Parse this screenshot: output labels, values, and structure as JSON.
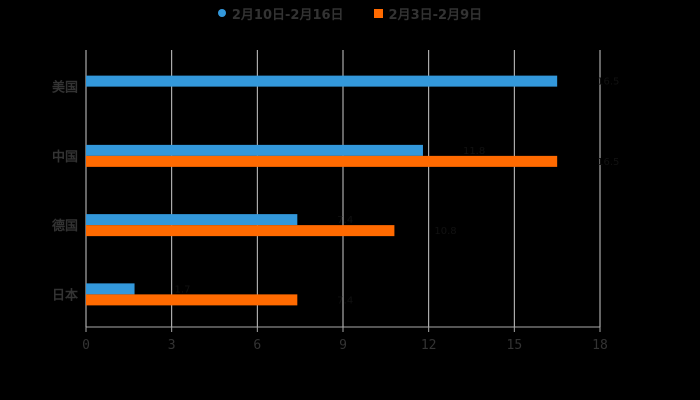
{
  "chart_data": {
    "type": "bar",
    "orientation": "horizontal",
    "title": "",
    "xlabel": "",
    "ylabel": "",
    "categories": [
      "美国",
      "中国",
      "德国",
      "日本"
    ],
    "series": [
      {
        "name": "2月10日-2月16日",
        "color": "#3398db",
        "values": [
          16.5,
          11.8,
          7.4,
          1.7
        ]
      },
      {
        "name": "2月3日-2月9日",
        "color": "#ff6a00",
        "values": [
          null,
          16.5,
          10.8,
          7.4
        ]
      }
    ],
    "xlim": [
      0,
      18
    ],
    "x_ticks": [
      "0",
      "3",
      "6",
      "9",
      "12",
      "15",
      "18"
    ],
    "grid": true,
    "legend_position": "top"
  },
  "legend": {
    "items": [
      {
        "label": "2月10日-2月16日",
        "color": "#3398db"
      },
      {
        "label": "2月3日-2月9日",
        "color": "#ff6a00"
      }
    ]
  }
}
